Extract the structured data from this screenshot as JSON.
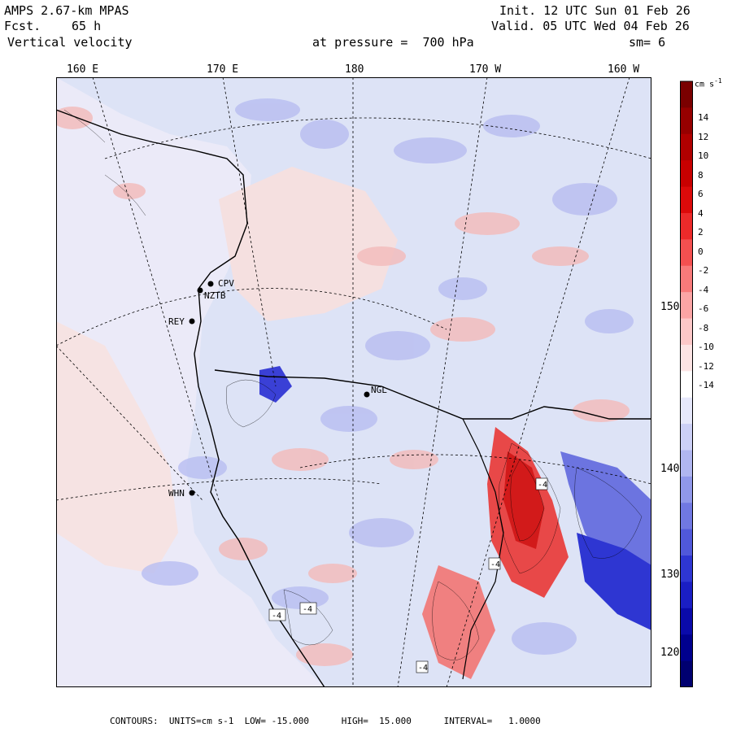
{
  "header": {
    "model": "AMPS 2.67-km MPAS",
    "fcst_label": "Fcst.",
    "fcst_value": "65 h",
    "variable": "Vertical velocity",
    "init": "Init. 12 UTC Sun 01 Feb 26",
    "valid": "Valid. 05 UTC Wed 04 Feb 26",
    "level_text": "at pressure =  700 hPa",
    "smoothing": "sm= 6"
  },
  "map": {
    "longitude_labels": [
      "160 E",
      "170 E",
      "180",
      "170 W",
      "160 W"
    ],
    "latitude_labels": [
      "150 W",
      "140 W",
      "130 W",
      "120 W"
    ],
    "stations": [
      "CPV",
      "NZTB",
      "REY",
      "NGL",
      "WHN"
    ],
    "low_markers": [
      "-4",
      "-4",
      "-4",
      "-4",
      "-4"
    ],
    "colors": {
      "land_ice_background": "#f3dddd",
      "ocean_background": "#dde3f6",
      "coastline": "#000000",
      "grid": "#000000"
    }
  },
  "colorbar": {
    "unit": "cm s-1",
    "tick_labels": [
      "14",
      "12",
      "10",
      "8",
      "6",
      "4",
      "2",
      "0",
      "-2",
      "-4",
      "-6",
      "-8",
      "-10",
      "-12",
      "-14"
    ],
    "colors": [
      "#7a0000",
      "#960000",
      "#b00000",
      "#c80000",
      "#dc0a0a",
      "#ec2a2a",
      "#f45050",
      "#f87a7a",
      "#fba5a5",
      "#fdc8c8",
      "#fde4e4",
      "#ffffff",
      "#e6e8fb",
      "#ccd0f6",
      "#b0b6f0",
      "#9098ea",
      "#7078e2",
      "#5058da",
      "#2e36d2",
      "#1a1ec4",
      "#0a0aaa",
      "#00008e",
      "#000070"
    ]
  },
  "footer": {
    "text": "CONTOURS:  UNITS=cm s-1  LOW= -15.000      HIGH=  15.000      INTERVAL=   1.0000"
  }
}
